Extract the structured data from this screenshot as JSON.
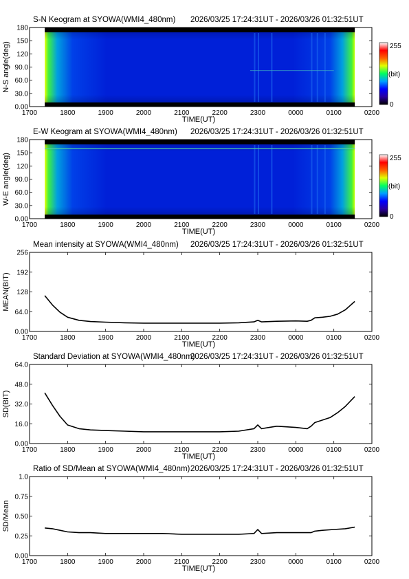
{
  "time_range": "2026/03/25 17:24:31UT - 2026/03/26 01:32:51UT",
  "x_ticks": [
    "1700",
    "1800",
    "1900",
    "2000",
    "2100",
    "2200",
    "2300",
    "0000",
    "0100",
    "0200"
  ],
  "x_label": "TIME(UT)",
  "colors": {
    "keogram_low": "#0010c8",
    "keogram_high": "#00e000",
    "line": "#000000",
    "colorbar": [
      "#000000",
      "#2a00a0",
      "#0000ff",
      "#00a0ff",
      "#00ff60",
      "#e0ff00",
      "#ff6000",
      "#ff0000",
      "#ffffff"
    ]
  },
  "chart_data": [
    {
      "type": "heatmap",
      "title": "S-N Keogram at SYOWA(WMI4_480nm)",
      "ylabel": "N-S angle(deg)",
      "xlabel": "TIME(UT)",
      "y_ticks": [
        "180",
        "150",
        "120",
        "90.0",
        "60.0",
        "30.0",
        "0.00"
      ],
      "ylim": [
        0,
        180
      ],
      "xlim": [
        1700,
        2600
      ],
      "data_xlim": [
        1740,
        2555
      ],
      "colorbar": {
        "min": "0",
        "max": "255",
        "unit": "(bit)"
      }
    },
    {
      "type": "heatmap",
      "title": "E-W Keogram at SYOWA(WMI4_480nm)",
      "ylabel": "W-E angle(deg)",
      "xlabel": "TIME(UT)",
      "y_ticks": [
        "180",
        "150",
        "120",
        "90.0",
        "60.0",
        "30.0",
        "0.00"
      ],
      "ylim": [
        0,
        180
      ],
      "xlim": [
        1700,
        2600
      ],
      "data_xlim": [
        1740,
        2555
      ],
      "colorbar": {
        "min": "0",
        "max": "255",
        "unit": "(bit)"
      }
    },
    {
      "type": "line",
      "title": "Mean intensity at SYOWA(WMI4_480nm)",
      "ylabel": "MEAN(BIT)",
      "xlabel": "TIME(UT)",
      "y_ticks": [
        "256",
        "192",
        "128",
        "64.0",
        "0.00"
      ],
      "ylim": [
        0,
        256
      ],
      "xlim": [
        1700,
        2600
      ],
      "x": [
        1740,
        1760,
        1780,
        1800,
        1830,
        1860,
        1900,
        1950,
        2000,
        2100,
        2200,
        2250,
        2290,
        2300,
        2310,
        2350,
        2400,
        2430,
        2440,
        2450,
        2470,
        2490,
        2510,
        2530,
        2555
      ],
      "y": [
        116,
        86,
        62,
        46,
        36,
        32,
        30,
        28,
        27,
        27,
        27,
        28,
        31,
        36,
        31,
        33,
        34,
        33,
        36,
        44,
        46,
        49,
        56,
        70,
        97
      ]
    },
    {
      "type": "line",
      "title": "Standard Deviation at SYOWA(WMI4_480nm)",
      "ylabel": "SD(BIT)",
      "xlabel": "TIME(UT)",
      "y_ticks": [
        "64.0",
        "48.0",
        "32.0",
        "16.0",
        "0.00"
      ],
      "ylim": [
        0,
        64
      ],
      "xlim": [
        1700,
        2600
      ],
      "x": [
        1740,
        1760,
        1780,
        1800,
        1830,
        1860,
        1900,
        1950,
        2000,
        2100,
        2200,
        2250,
        2290,
        2300,
        2310,
        2330,
        2350,
        2400,
        2430,
        2440,
        2450,
        2470,
        2490,
        2510,
        2530,
        2555
      ],
      "y": [
        41,
        31,
        22,
        15,
        12,
        11,
        10.5,
        10,
        9.5,
        9.5,
        9.5,
        10,
        12,
        15,
        12,
        13,
        14,
        13,
        12,
        14,
        17,
        19,
        21,
        25,
        30,
        38
      ]
    },
    {
      "type": "line",
      "title": "Ratio of SD/Mean at SYOWA(WMI4_480nm)",
      "ylabel": "SD/Mean",
      "xlabel": "TIME(UT)",
      "y_ticks": [
        "1.0",
        "0.75",
        "0.50",
        "0.25",
        "0.00"
      ],
      "ylim": [
        0,
        1
      ],
      "xlim": [
        1700,
        2600
      ],
      "x": [
        1740,
        1760,
        1780,
        1800,
        1830,
        1860,
        1900,
        1950,
        2000,
        2050,
        2100,
        2150,
        2200,
        2250,
        2290,
        2300,
        2310,
        2350,
        2400,
        2430,
        2440,
        2450,
        2470,
        2500,
        2530,
        2555
      ],
      "y": [
        0.35,
        0.34,
        0.32,
        0.3,
        0.29,
        0.29,
        0.28,
        0.28,
        0.28,
        0.28,
        0.27,
        0.27,
        0.27,
        0.27,
        0.28,
        0.33,
        0.28,
        0.29,
        0.29,
        0.29,
        0.29,
        0.31,
        0.32,
        0.33,
        0.34,
        0.36
      ]
    }
  ]
}
